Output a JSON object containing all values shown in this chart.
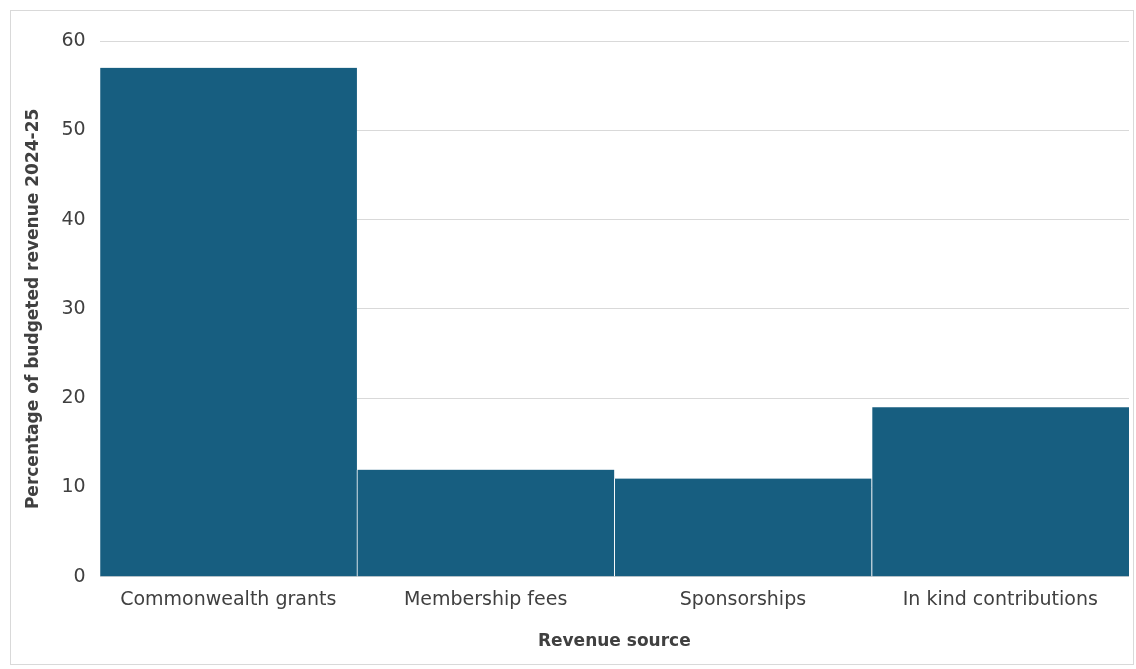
{
  "chart_data": {
    "type": "bar",
    "xlabel": "Revenue source",
    "ylabel": "Percentage of budgeted revenue 2024-25",
    "categories": [
      "Commonwealth grants",
      "Membership fees",
      "Sponsorships",
      "In kind contributions"
    ],
    "values": [
      57,
      12,
      11,
      19
    ],
    "color": "#175e80",
    "ylim": [
      0,
      60
    ],
    "yticks": [
      0,
      10,
      20,
      30,
      40,
      50,
      60
    ],
    "grid": "y"
  }
}
